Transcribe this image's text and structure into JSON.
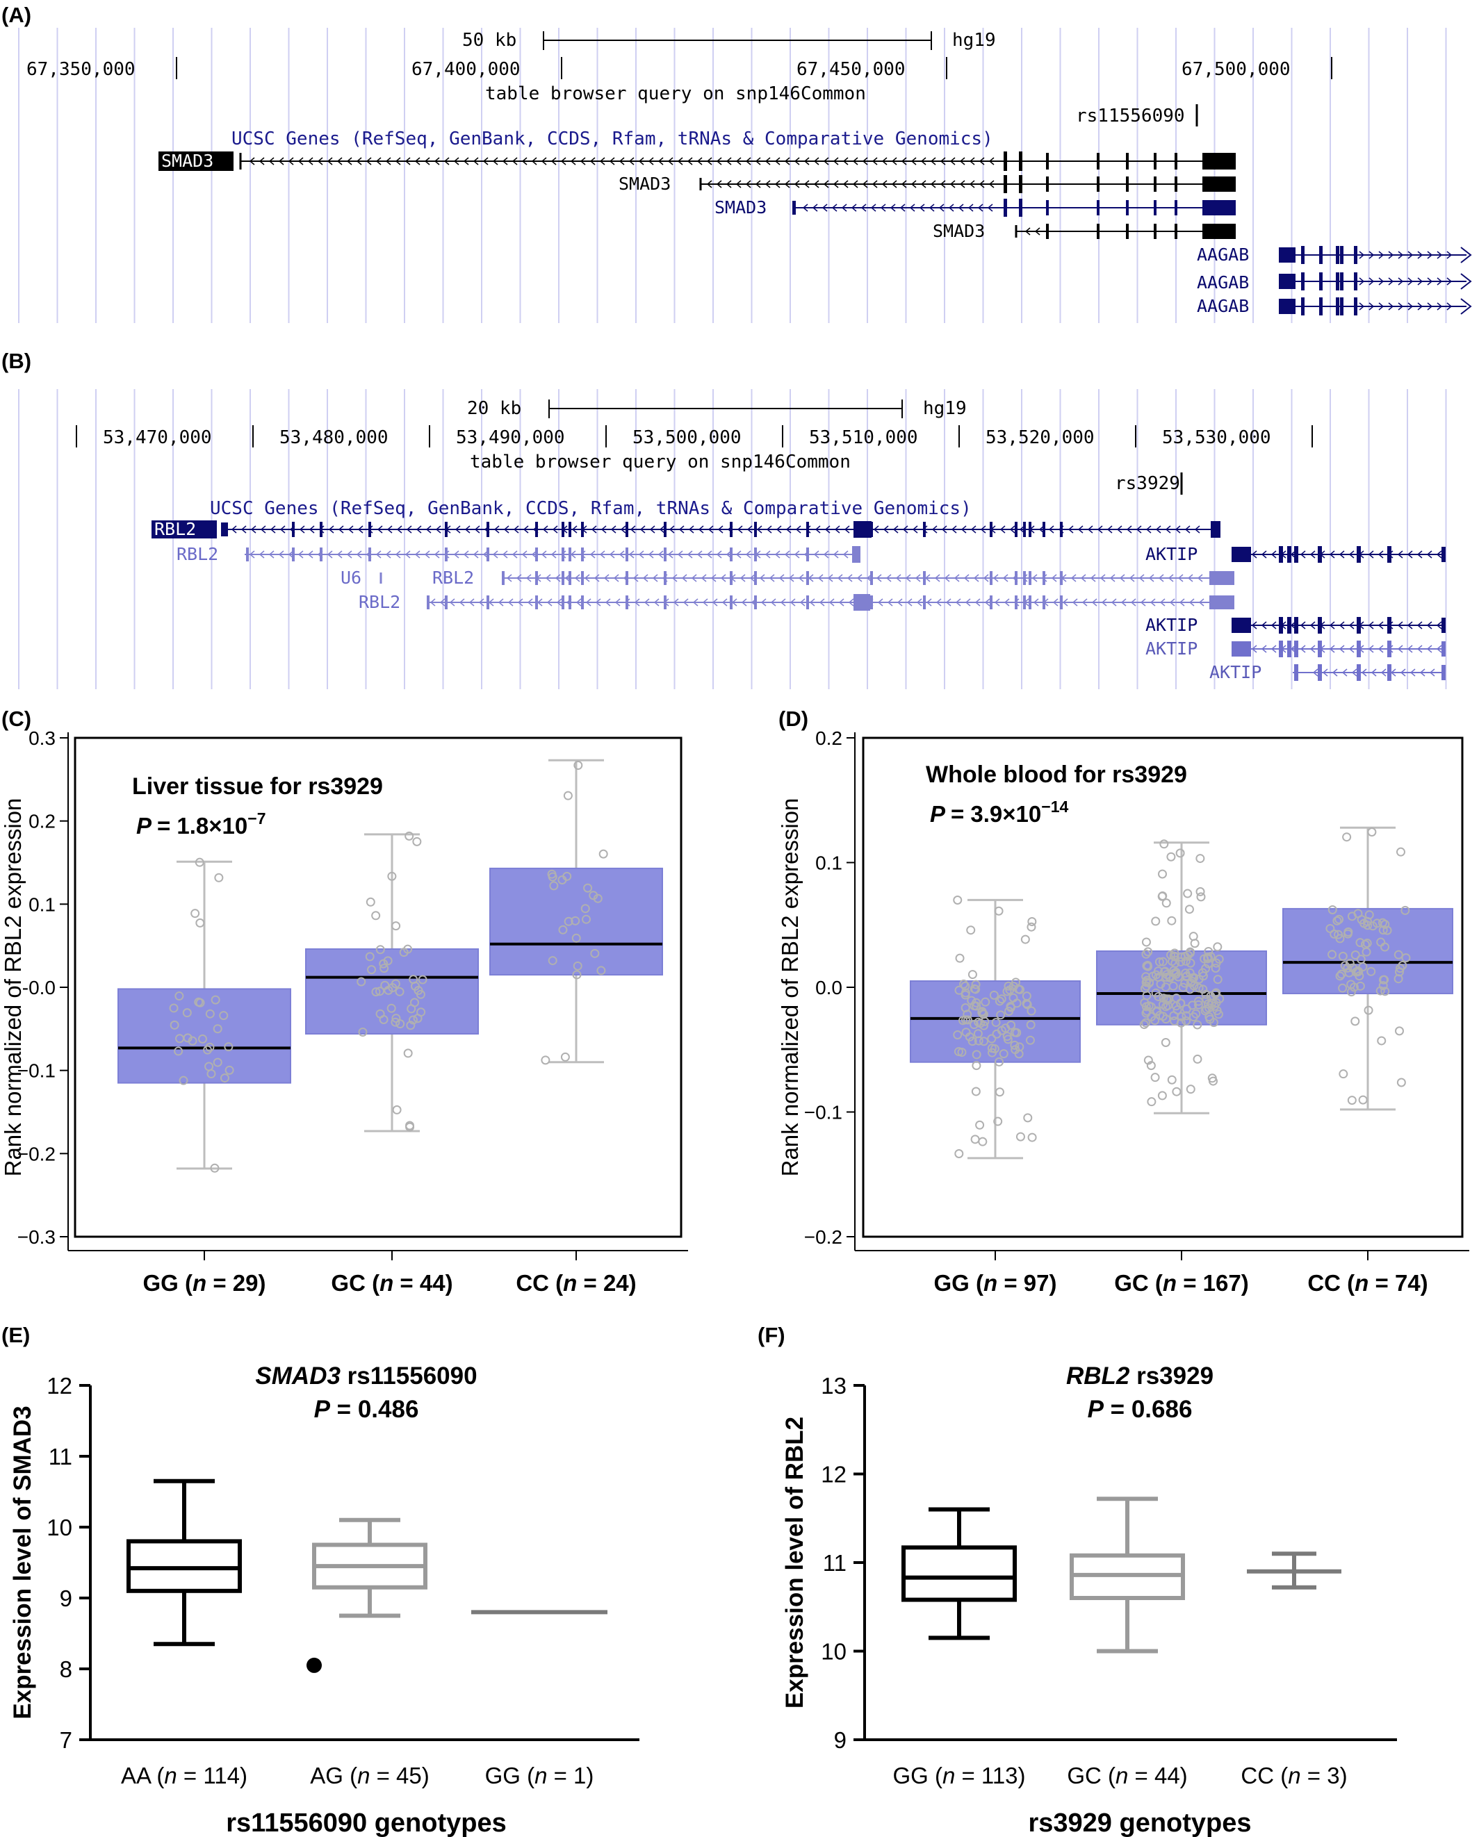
{
  "panels": {
    "A": {
      "label": "(A)",
      "scale_text": "50 kb",
      "assembly": "hg19",
      "positions": [
        "67,350,000",
        "67,400,000",
        "67,450,000",
        "67,500,000"
      ],
      "query_title": "table browser query on snp146Common",
      "snp": "rs11556090",
      "track_title": "UCSC Genes (RefSeq, GenBank, CCDS, Rfam, tRNAs & Comparative Genomics)",
      "genes": [
        "SMAD3",
        "SMAD3",
        "SMAD3",
        "SMAD3",
        "AAGAB",
        "AAGAB",
        "AAGAB"
      ],
      "colors": {
        "dark_gene": "#0a0a6e",
        "black_gene": "#000000",
        "light_gene": "#8080d0",
        "text_blue": "#1a1a8c",
        "grid": "#c8c8f0"
      }
    },
    "B": {
      "label": "(B)",
      "scale_text": "20 kb",
      "assembly": "hg19",
      "positions": [
        "53,470,000",
        "53,480,000",
        "53,490,000",
        "53,500,000",
        "53,510,000",
        "53,520,000",
        "53,530,000"
      ],
      "query_title": "table browser query on snp146Common",
      "snp": "rs3929",
      "track_title": "UCSC Genes (RefSeq, GenBank, CCDS, Rfam, tRNAs & Comparative Genomics)",
      "genes": [
        "RBL2",
        "RBL2",
        "U6",
        "RBL2",
        "RBL2",
        "AKTIP",
        "AKTIP",
        "AKTIP",
        "AKTIP"
      ]
    }
  },
  "chart_data": [
    {
      "id": "C",
      "label": "(C)",
      "type": "box",
      "title": "Liver tissue for rs3929",
      "p_prefix": "P",
      "p_value": "= 1.8×10",
      "p_exp": "−7",
      "ylabel": "Rank normalized of RBL2 expression",
      "ylim": [
        -0.3,
        0.3
      ],
      "yticks": [
        "0.3",
        "0.2",
        "0.1",
        "-0.0",
        "−0.1",
        "−0.2",
        "−0.3"
      ],
      "box_color": "#8c8fe0",
      "categories": [
        {
          "name": "GG (",
          "n_italic": "n",
          "n_text": " = 29)",
          "min": -0.218,
          "q1": -0.115,
          "median": -0.073,
          "q3": -0.002,
          "max": 0.151
        },
        {
          "name": "GC (",
          "n_italic": "n",
          "n_text": " = 44)",
          "min": -0.173,
          "q1": -0.056,
          "median": 0.012,
          "q3": 0.046,
          "max": 0.184
        },
        {
          "name": "CC (",
          "n_italic": "n",
          "n_text": " = 24)",
          "min": -0.09,
          "q1": 0.015,
          "median": 0.052,
          "q3": 0.143,
          "max": 0.273
        }
      ]
    },
    {
      "id": "D",
      "label": "(D)",
      "type": "box",
      "title": "Whole blood for rs3929",
      "p_prefix": "P",
      "p_value": "= 3.9×10",
      "p_exp": "−14",
      "ylabel": "Rank normalized of RBL2 expression",
      "ylim": [
        -0.2,
        0.2
      ],
      "yticks": [
        "0.2",
        "0.1",
        "0.0",
        "−0.1",
        "−0.2"
      ],
      "box_color": "#8c8fe0",
      "categories": [
        {
          "name": "GG (",
          "n_italic": "n",
          "n_text": " = 97)",
          "min": -0.137,
          "q1": -0.06,
          "median": -0.025,
          "q3": 0.005,
          "max": 0.07
        },
        {
          "name": "GC (",
          "n_italic": "n",
          "n_text": " = 167)",
          "min": -0.101,
          "q1": -0.03,
          "median": -0.005,
          "q3": 0.029,
          "max": 0.116
        },
        {
          "name": "CC (",
          "n_italic": "n",
          "n_text": " = 74)",
          "min": -0.098,
          "q1": -0.005,
          "median": 0.02,
          "q3": 0.063,
          "max": 0.128
        }
      ]
    },
    {
      "id": "E",
      "label": "(E)",
      "type": "box",
      "title_italic": "SMAD3",
      "title_rest": " rs11556090",
      "p_prefix": "P",
      "p_value": " = 0.486",
      "ylabel": "Expression level of SMAD3",
      "xlabel": "rs11556090 genotypes",
      "ylim": [
        7,
        12
      ],
      "yticks": [
        "12",
        "11",
        "10",
        "9",
        "8",
        "7"
      ],
      "categories": [
        {
          "name": "AA (",
          "n_italic": "n",
          "n_text": " = 114)",
          "min": 8.35,
          "q1": 9.1,
          "median": 9.42,
          "q3": 9.8,
          "max": 10.65,
          "color": "#000000"
        },
        {
          "name": "AG (",
          "n_italic": "n",
          "n_text": " = 45)",
          "min": 8.75,
          "q1": 9.15,
          "median": 9.45,
          "q3": 9.75,
          "max": 10.1,
          "outliers": [
            8.05
          ],
          "color": "#9a9a9a"
        },
        {
          "name": "GG (",
          "n_italic": "n",
          "n_text": " = 1)",
          "value": 8.8,
          "color": "#7a7a7a"
        }
      ]
    },
    {
      "id": "F",
      "label": "(F)",
      "type": "box",
      "title_italic": "RBL2",
      "title_rest": " rs3929",
      "p_prefix": "P",
      "p_value": " = 0.686",
      "ylabel": "Expression level of RBL2",
      "xlabel": "rs3929 genotypes",
      "ylim": [
        9,
        13
      ],
      "yticks": [
        "13",
        "12",
        "11",
        "10",
        "9"
      ],
      "categories": [
        {
          "name": "GG (",
          "n_italic": "n",
          "n_text": " = 113)",
          "min": 10.15,
          "q1": 10.58,
          "median": 10.83,
          "q3": 11.17,
          "max": 11.6,
          "color": "#000000"
        },
        {
          "name": "GC (",
          "n_italic": "n",
          "n_text": " = 44)",
          "min": 10.0,
          "q1": 10.6,
          "median": 10.86,
          "q3": 11.08,
          "max": 11.72,
          "color": "#9a9a9a"
        },
        {
          "name": "CC (",
          "n_italic": "n",
          "n_text": " = 3)",
          "min": 10.72,
          "median": 10.9,
          "max": 11.1,
          "color": "#7a7a7a"
        }
      ]
    }
  ]
}
